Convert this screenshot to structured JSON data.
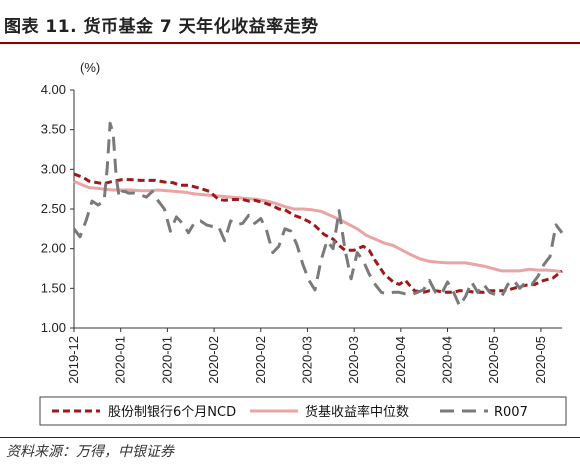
{
  "title": "图表 11. 货币基金 7 天年化收益率走势",
  "source": "资料来源：万得，中银证券",
  "chart_data": {
    "type": "line",
    "ylabel": "(%)",
    "ylim": [
      1.0,
      4.0
    ],
    "yticks": [
      "4.00",
      "3.50",
      "3.00",
      "2.50",
      "2.00",
      "1.50",
      "1.00"
    ],
    "xticks": [
      "2019-12",
      "2020-01",
      "2020-01",
      "2020-02",
      "2020-02",
      "2020-03",
      "2020-03",
      "2020-04",
      "2020-04",
      "2020-05",
      "2020-05"
    ],
    "legend_position": "bottom",
    "series": [
      {
        "name": "股份制银行6个月NCD",
        "color": "#9b1b1b",
        "style": "dashed",
        "x": [
          0,
          3,
          5,
          8,
          10,
          13,
          16,
          19,
          22,
          25,
          27,
          30,
          33,
          35,
          38,
          40,
          42,
          45,
          48,
          50,
          53,
          56,
          58,
          60,
          63,
          66,
          68,
          70,
          73,
          76,
          78,
          80,
          83,
          86,
          88,
          90,
          93,
          96,
          98,
          100,
          103,
          106,
          108,
          110,
          113,
          116,
          118,
          120,
          123,
          126,
          128,
          130,
          133,
          136,
          138,
          140,
          143,
          146,
          148,
          150,
          153,
          156,
          159,
          162
        ],
        "y": [
          2.94,
          2.9,
          2.85,
          2.83,
          2.82,
          2.85,
          2.87,
          2.87,
          2.86,
          2.86,
          2.86,
          2.84,
          2.83,
          2.8,
          2.8,
          2.78,
          2.76,
          2.72,
          2.62,
          2.61,
          2.62,
          2.62,
          2.6,
          2.61,
          2.58,
          2.54,
          2.5,
          2.49,
          2.42,
          2.38,
          2.34,
          2.29,
          2.18,
          2.12,
          2.04,
          1.98,
          1.98,
          2.03,
          1.98,
          1.85,
          1.68,
          1.58,
          1.55,
          1.6,
          1.47,
          1.45,
          1.47,
          1.47,
          1.45,
          1.45,
          1.47,
          1.47,
          1.45,
          1.45,
          1.47,
          1.47,
          1.47,
          1.5,
          1.52,
          1.54,
          1.55,
          1.6,
          1.63,
          1.72
        ]
      },
      {
        "name": "货基收益率中位数",
        "color": "#eaa4a4",
        "style": "solid",
        "x": [
          0,
          3,
          5,
          8,
          10,
          13,
          16,
          19,
          22,
          25,
          28,
          31,
          34,
          37,
          40,
          43,
          46,
          49,
          52,
          55,
          58,
          61,
          64,
          67,
          70,
          73,
          76,
          79,
          82,
          85,
          88,
          91,
          94,
          97,
          100,
          103,
          106,
          109,
          112,
          115,
          118,
          121,
          124,
          127,
          130,
          133,
          136,
          139,
          142,
          145,
          148,
          151,
          154,
          157,
          160,
          162
        ],
        "y": [
          2.85,
          2.8,
          2.77,
          2.76,
          2.75,
          2.74,
          2.74,
          2.74,
          2.73,
          2.73,
          2.74,
          2.73,
          2.72,
          2.71,
          2.69,
          2.68,
          2.67,
          2.66,
          2.65,
          2.64,
          2.63,
          2.62,
          2.6,
          2.57,
          2.53,
          2.5,
          2.5,
          2.49,
          2.47,
          2.42,
          2.37,
          2.31,
          2.25,
          2.17,
          2.12,
          2.07,
          2.04,
          1.98,
          1.92,
          1.87,
          1.84,
          1.83,
          1.82,
          1.82,
          1.82,
          1.8,
          1.78,
          1.75,
          1.72,
          1.72,
          1.72,
          1.74,
          1.73,
          1.73,
          1.72,
          1.71
        ]
      },
      {
        "name": "R007",
        "color": "#7a7a7a",
        "style": "dashed",
        "x": [
          0,
          2,
          4,
          6,
          8,
          10,
          11,
          12,
          13,
          14,
          15,
          16,
          17,
          18,
          20,
          22,
          24,
          26,
          28,
          30,
          32,
          34,
          36,
          38,
          40,
          42,
          44,
          46,
          48,
          50,
          52,
          54,
          56,
          58,
          60,
          62,
          64,
          66,
          68,
          70,
          72,
          74,
          76,
          78,
          80,
          82,
          84,
          86,
          88,
          90,
          92,
          94,
          96,
          98,
          100,
          102,
          104,
          106,
          108,
          110,
          112,
          114,
          116,
          118,
          120,
          122,
          124,
          126,
          128,
          130,
          132,
          134,
          136,
          138,
          140,
          142,
          144,
          146,
          148,
          150,
          152,
          154,
          156,
          158,
          160,
          162
        ],
        "y": [
          2.25,
          2.15,
          2.35,
          2.6,
          2.55,
          2.6,
          3.0,
          3.58,
          3.45,
          2.9,
          2.65,
          2.72,
          2.72,
          2.7,
          2.7,
          2.68,
          2.65,
          2.72,
          2.6,
          2.5,
          2.22,
          2.4,
          2.32,
          2.2,
          2.33,
          2.35,
          2.3,
          2.28,
          2.28,
          2.1,
          2.35,
          2.3,
          2.32,
          2.42,
          2.32,
          2.38,
          2.22,
          1.95,
          2.03,
          2.25,
          2.22,
          2.05,
          1.8,
          1.6,
          1.48,
          1.85,
          2.1,
          2.0,
          2.48,
          1.98,
          1.62,
          1.95,
          1.85,
          1.68,
          1.55,
          1.45,
          1.43,
          1.45,
          1.45,
          1.43,
          1.42,
          1.45,
          1.48,
          1.6,
          1.45,
          1.43,
          1.58,
          1.45,
          1.28,
          1.4,
          1.58,
          1.45,
          1.55,
          1.45,
          1.42,
          1.4,
          1.55,
          1.6,
          1.5,
          1.58,
          1.55,
          1.65,
          1.8,
          1.9,
          2.3,
          2.2
        ]
      }
    ]
  }
}
